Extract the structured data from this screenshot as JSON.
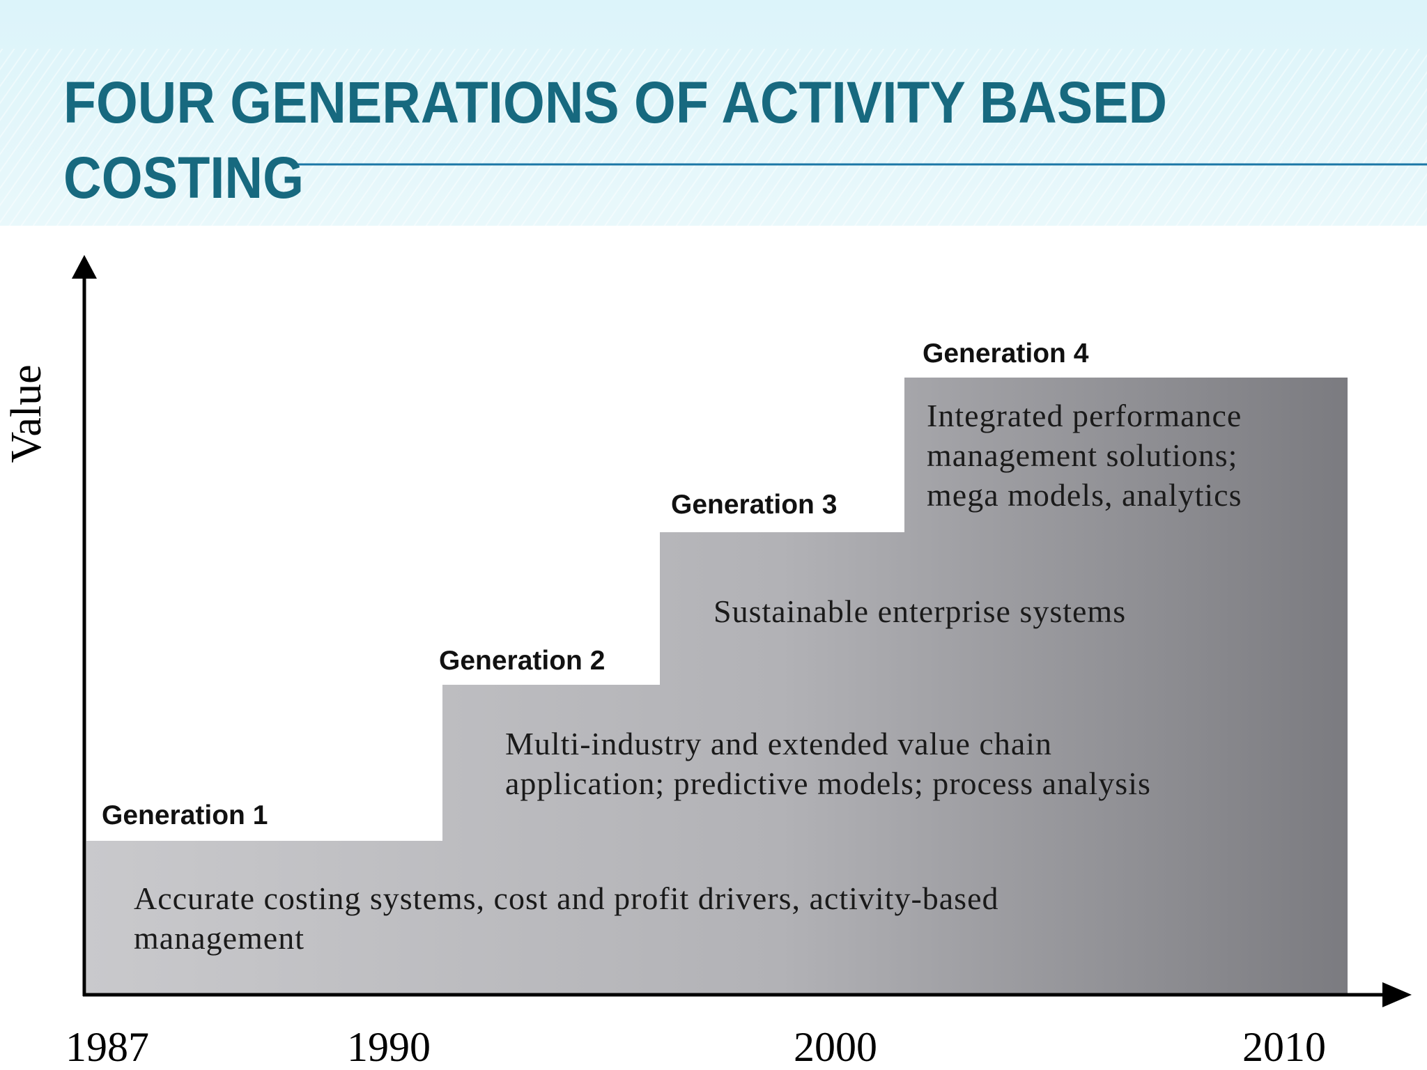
{
  "header": {
    "title_lines": [
      "FOUR GENERATIONS OF ACTIVITY BASED",
      "COSTING"
    ]
  },
  "diagram": {
    "y_axis_label": "Value",
    "x_axis_labels": [
      "1987",
      "1990",
      "2000",
      "2010"
    ],
    "generations": [
      {
        "label": "Generation 1",
        "description_lines": [
          "Accurate costing systems, cost and profit drivers, activity-based",
          "management"
        ]
      },
      {
        "label": "Generation 2",
        "description_lines": [
          "Multi-industry and extended value chain",
          "application; predictive models; process analysis"
        ]
      },
      {
        "label": "Generation 3",
        "description_lines": [
          "Sustainable enterprise systems"
        ]
      },
      {
        "label": "Generation 4",
        "description_lines": [
          "Integrated performance",
          "management solutions;",
          "mega models, analytics"
        ]
      }
    ]
  }
}
